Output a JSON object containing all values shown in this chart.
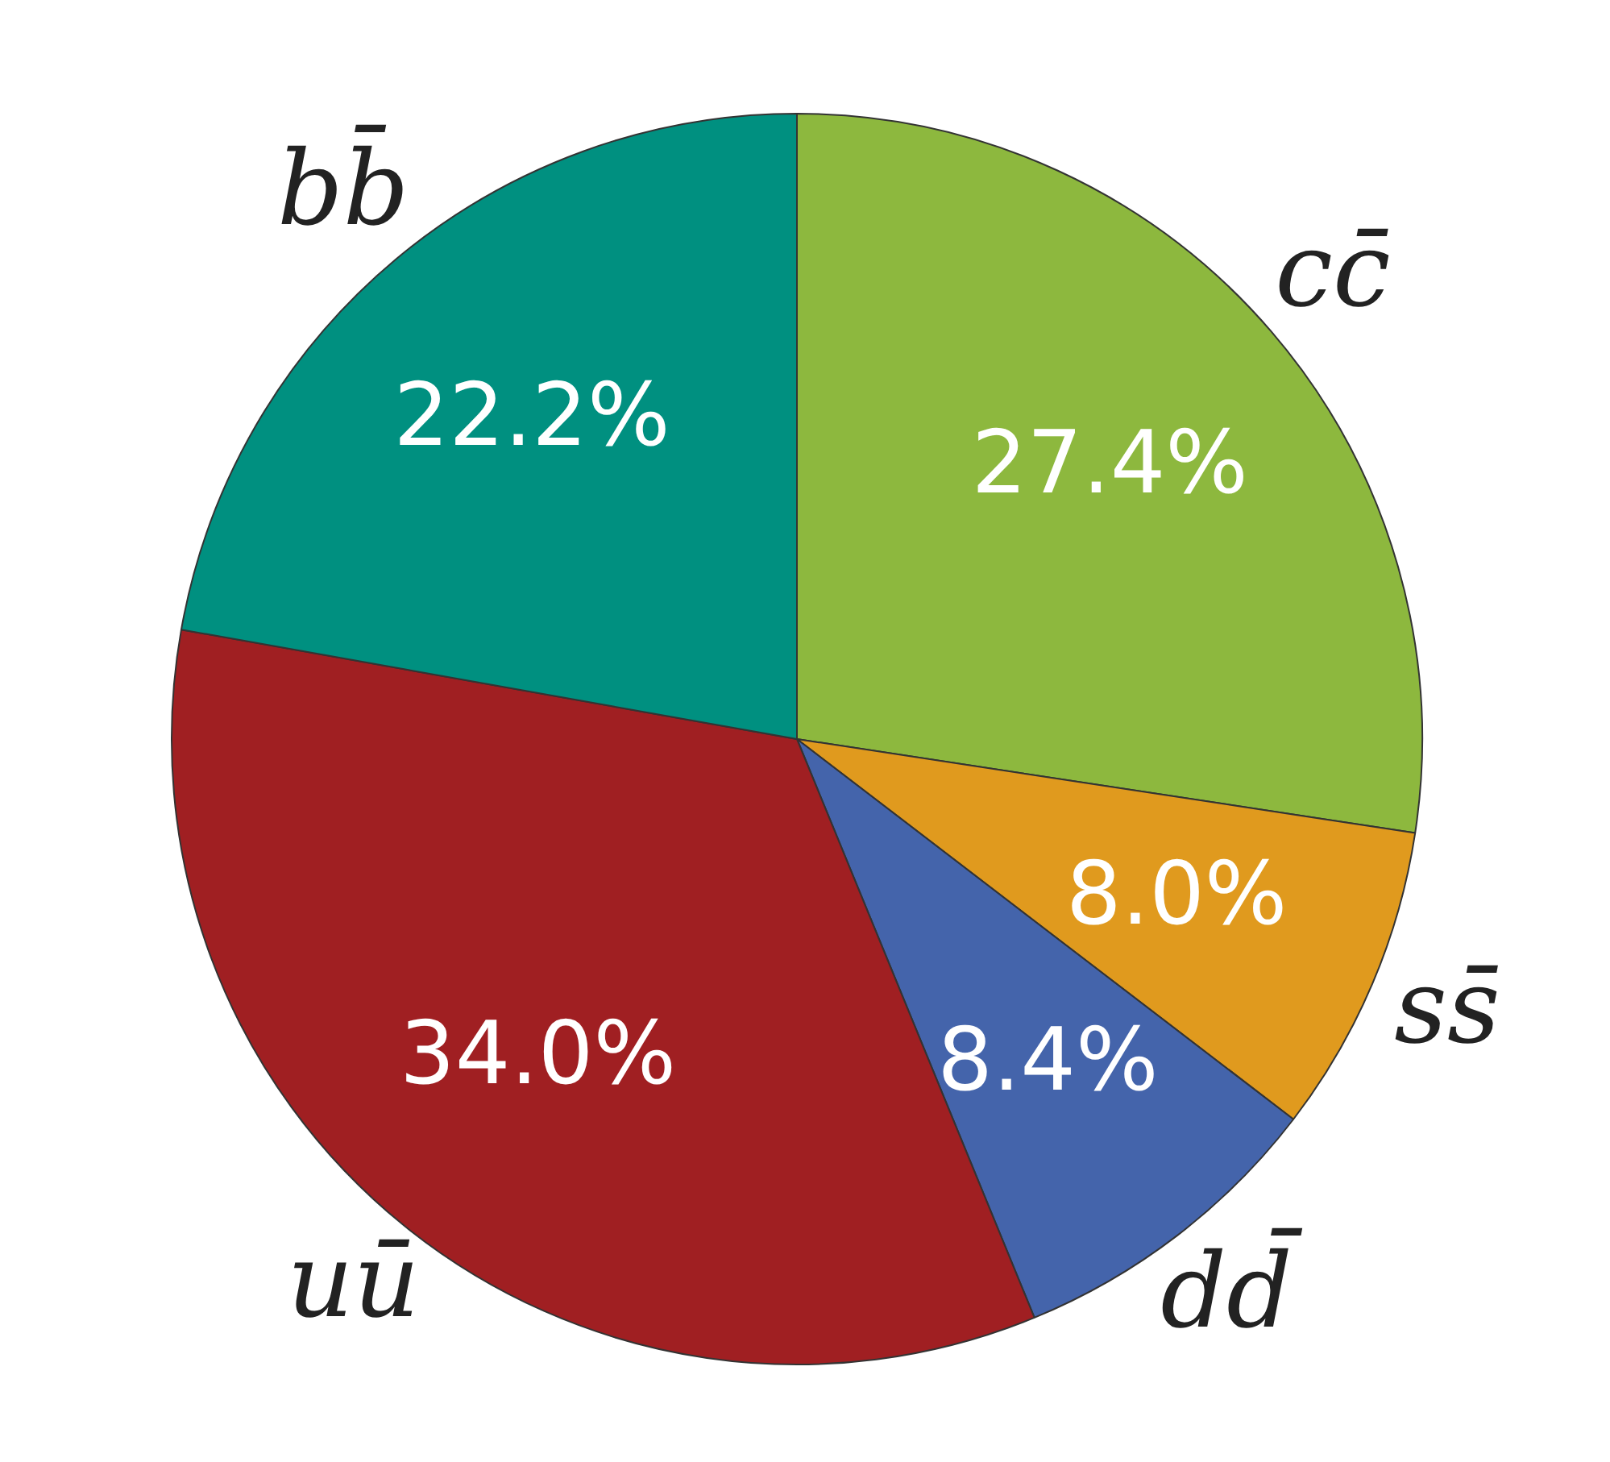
{
  "chart_data": {
    "type": "pie",
    "categories": [
      "cc̄",
      "ss̄",
      "dd̄",
      "uū",
      "bb̄"
    ],
    "values": [
      27.4,
      8.0,
      8.4,
      34.0,
      22.2
    ],
    "value_labels": [
      "27.4%",
      "8.0%",
      "8.4%",
      "34.0%",
      "22.2%"
    ],
    "colors": [
      "#8db83e",
      "#e09a1e",
      "#4464ab",
      "#a01f22",
      "#009080"
    ],
    "legend": false
  }
}
